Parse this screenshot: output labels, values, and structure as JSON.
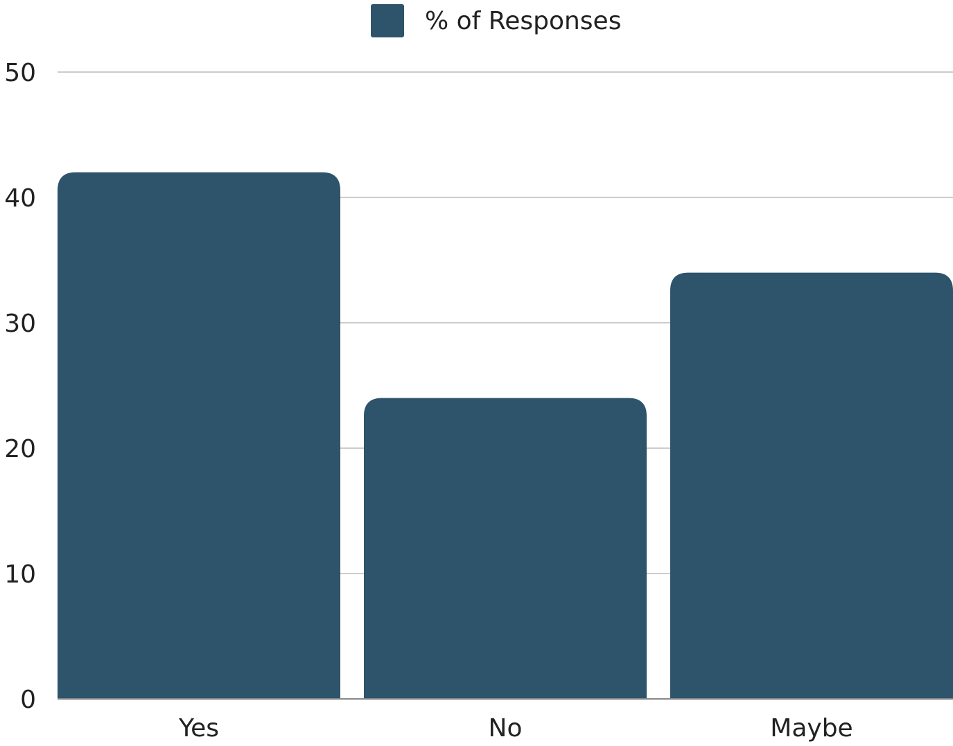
{
  "chart_data": {
    "type": "bar",
    "categories": [
      "Yes",
      "No",
      "Maybe"
    ],
    "series": [
      {
        "name": "% of Responses",
        "values": [
          42,
          24,
          34
        ],
        "color": "#2d546b"
      }
    ],
    "ylim": [
      0,
      50
    ],
    "yticks": [
      0,
      10,
      20,
      30,
      40,
      50
    ],
    "grid": true,
    "legend_placement": "top-center",
    "gridline_color": "#cccccc",
    "baseline_color": "#888888"
  }
}
